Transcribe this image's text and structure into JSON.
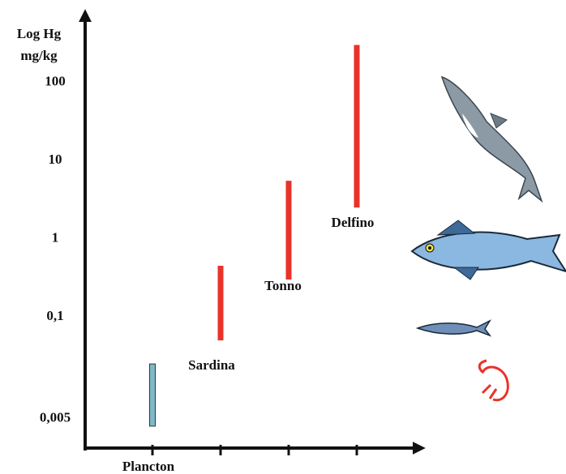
{
  "chart_data": {
    "type": "range-bar",
    "ylabel": [
      "Log Hg",
      "mg/kg"
    ],
    "categories": [
      "Plancton",
      "Sardina",
      "Tonno",
      "Delfino"
    ],
    "low": [
      0.004,
      0.05,
      0.3,
      2.5
    ],
    "high": [
      0.025,
      0.45,
      5.5,
      300
    ],
    "colors": [
      "#7fb9c9",
      "#e8332a",
      "#e8332a",
      "#e8332a"
    ],
    "log_scale": true,
    "ylim": [
      0.002,
      700
    ],
    "yticks": [
      {
        "value": 0.005,
        "label": "0,005"
      },
      {
        "value": 0.1,
        "label": "0,1"
      },
      1,
      10,
      100
    ]
  }
}
